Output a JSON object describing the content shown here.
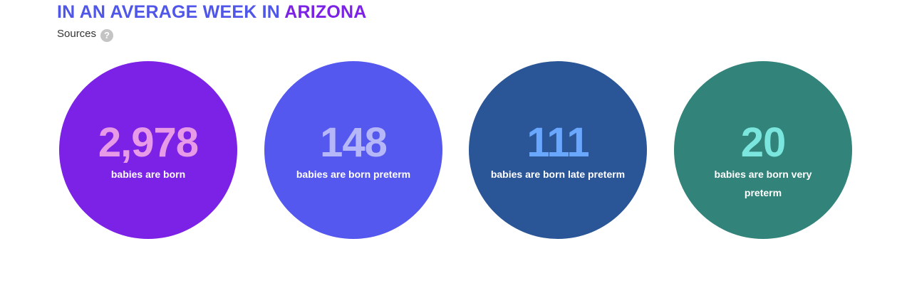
{
  "header": {
    "title_prefix": "IN AN AVERAGE WEEK IN ",
    "title_state": "ARIZONA",
    "sources_label": "Sources",
    "help_glyph": "?"
  },
  "stats": [
    {
      "value": "2,978",
      "label": "babies are born",
      "circle_color": "#7b22e6",
      "value_color": "#e79be6"
    },
    {
      "value": "148",
      "label": "babies are born preterm",
      "circle_color": "#5558ee",
      "value_color": "#b5b7f9"
    },
    {
      "value": "111",
      "label": "babies are born late preterm",
      "circle_color": "#2a5597",
      "value_color": "#6aa7ff"
    },
    {
      "value": "20",
      "label": "babies are born very preterm",
      "circle_color": "#32837a",
      "value_color": "#7ae6dd"
    }
  ],
  "icons": {
    "help": "question-mark-icon"
  }
}
